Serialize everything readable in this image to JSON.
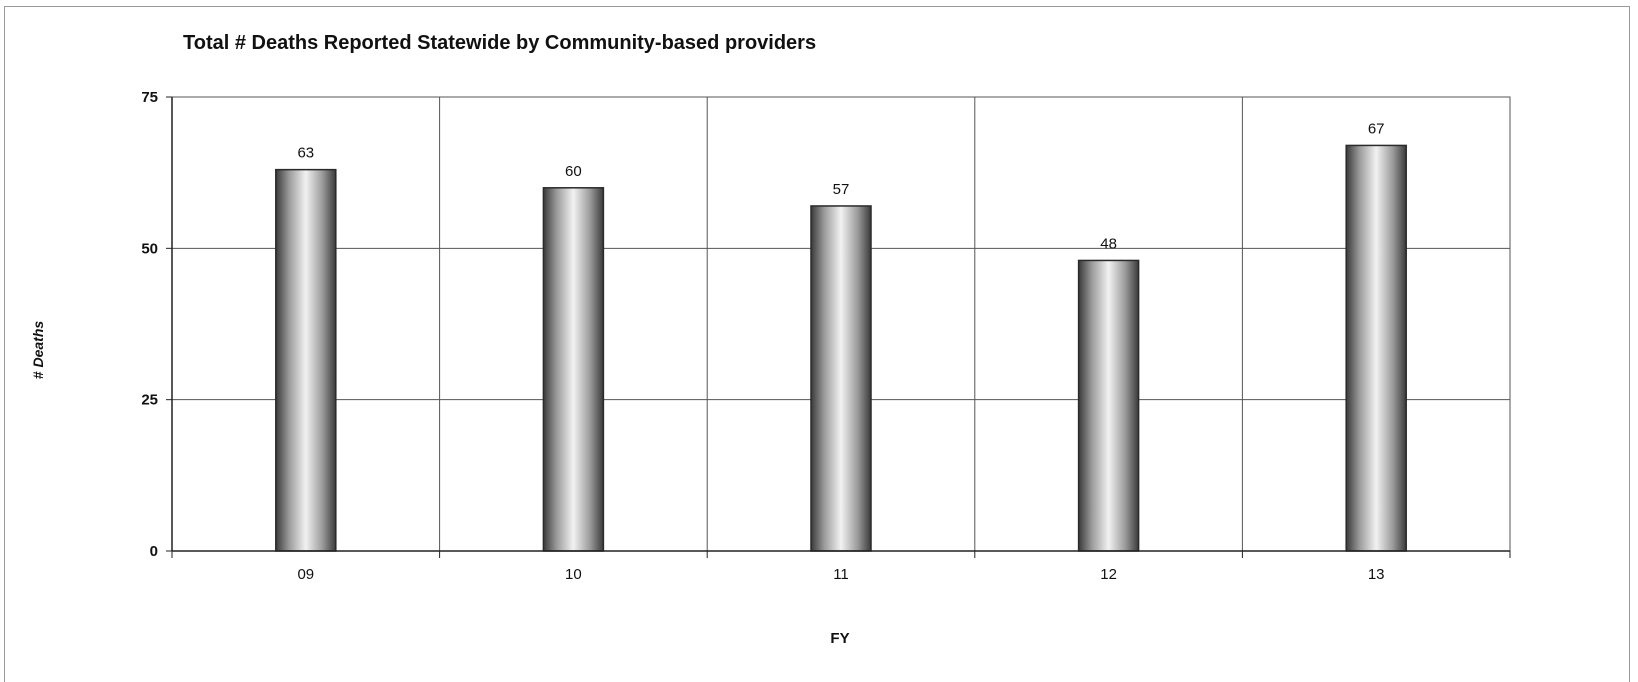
{
  "chart_data": {
    "type": "bar",
    "title": "Total # Deaths Reported Statewide by Community-based providers",
    "xlabel": "FY",
    "ylabel": "# Deaths",
    "categories": [
      "09",
      "10",
      "11",
      "12",
      "13"
    ],
    "values": [
      63,
      60,
      57,
      48,
      67
    ],
    "data_labels": [
      "63",
      "60",
      "57",
      "48",
      "67"
    ],
    "ylim": [
      0,
      75
    ],
    "yticks": [
      0,
      25,
      50,
      75
    ],
    "grid": true,
    "legend": "none",
    "colors": {
      "bar_light": "#f2f2f2",
      "bar_dark": "#3a3a3a",
      "gridline": "#555555",
      "axis": "#222222"
    }
  }
}
